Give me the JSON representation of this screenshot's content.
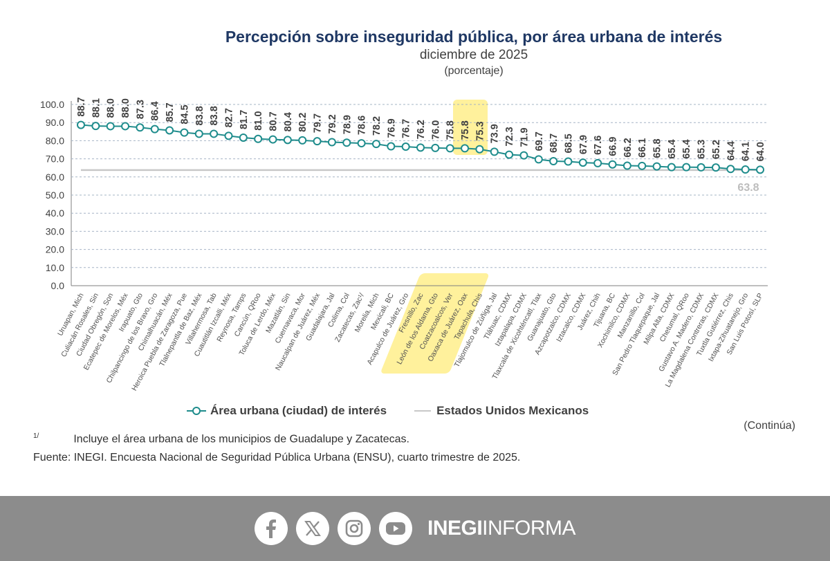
{
  "header": {
    "title": "Percepción sobre inseguridad pública, por área urbana de interés",
    "subtitle": "diciembre de 2025",
    "unit": "(porcentaje)"
  },
  "chart_data": {
    "type": "line",
    "title": "Percepción sobre inseguridad pública, por área urbana de interés",
    "subtitle": "diciembre de 2025",
    "ylabel": "(porcentaje)",
    "ylim": [
      0,
      100
    ],
    "yticks": [
      "100.0",
      "90.0",
      "80.0",
      "70.0",
      "60.0",
      "50.0",
      "40.0",
      "30.0",
      "20.0",
      "10.0",
      "0.0"
    ],
    "grid": true,
    "legend_position": "bottom",
    "categories": [
      "Uruapan, Mich",
      "Culiacán Rosales, Sin",
      "Ciudad Obregón, Son",
      "Ecatepec de Morelos, Méx",
      "Irapuato, Gto",
      "Chilpancingo de los Bravo, Gro",
      "Chimalhuacán, Méx",
      "Heroica Puebla de Zaragoza, Pue",
      "Tlalnepantla de Baz, Méx",
      "Villahermosa, Tab",
      "Cuautitlán Izcalli, Méx",
      "Reynosa, Tamps",
      "Cancún, QRoo",
      "Toluca de Lerdo, Méx",
      "Mazatlán, Sin",
      "Cuernavaca, Mor",
      "Naucalpan de Juárez, Méx",
      "Guadalajara, Jal",
      "Colima, Col",
      "Zacatecas, Zac¹/",
      "Morelia, Mich",
      "Mexicali, BC",
      "Acapulco de Juárez, Gro",
      "Fresnillo, Zac",
      "León de los Aldama, Gto",
      "Coatzacoalcos, Ver",
      "Oaxaca de Juárez, Oax",
      "Tapachula, Chis",
      "Tlajomulco de Zúñiga, Jal",
      "Tláhuac, CDMX",
      "Iztapalapa, CDMX",
      "Tlaxcala de Xicohténcatl, Tlax",
      "Guanajuato, Gto",
      "Azcapotzalco, CDMX",
      "Iztacalco, CDMX",
      "Juárez, Chih",
      "Tijuana, BC",
      "Xochimilco, CDMX",
      "Manzanillo, Col",
      "San Pedro Tlaquepaque, Jal",
      "Milpa Alta, CDMX",
      "Chetumal, QRoo",
      "Gustavo A. Madero, CDMX",
      "La Magdalena Contreras, CDMX",
      "Tuxtla Gutiérrez, Chis",
      "Ixtapa-Zihuatanejo, Gro",
      "San Luis Potosí, SLP"
    ],
    "data_labels": [
      "88.7",
      "88.1",
      "88.0",
      "88.0",
      "87.3",
      "86.4",
      "85.7",
      "84.5",
      "83.8",
      "83.8",
      "82.7",
      "81.7",
      "81.0",
      "80.7",
      "80.4",
      "80.2",
      "79.7",
      "79.2",
      "78.9",
      "78.6",
      "78.2",
      "76.9",
      "76.7",
      "76.2",
      "76.0",
      "75.8",
      "75.8",
      "75.3",
      "73.9",
      "72.3",
      "71.9",
      "69.7",
      "68.7",
      "68.5",
      "67.9",
      "67.6",
      "66.9",
      "66.2",
      "66.1",
      "65.8",
      "65.4",
      "65.4",
      "65.3",
      "65.2",
      "64.4",
      "64.1",
      "64.0"
    ],
    "series": [
      {
        "name": "Área urbana (ciudad) de interés",
        "color": "#1e8c8c",
        "values": [
          88.7,
          88.1,
          88.0,
          88.0,
          87.3,
          86.4,
          85.7,
          84.5,
          83.8,
          83.8,
          82.7,
          81.7,
          81.0,
          80.7,
          80.4,
          80.2,
          79.7,
          79.2,
          78.9,
          78.6,
          78.2,
          76.9,
          76.7,
          76.2,
          76.0,
          75.8,
          75.8,
          75.3,
          73.9,
          72.3,
          71.9,
          69.7,
          68.7,
          68.5,
          67.9,
          67.6,
          66.9,
          66.2,
          66.1,
          65.8,
          65.4,
          65.4,
          65.3,
          65.2,
          64.4,
          64.1,
          64.0
        ]
      },
      {
        "name": "Estados Unidos Mexicanos",
        "color": "#c8c8c8",
        "value": 63.8,
        "label": "63.8"
      }
    ],
    "highlighted_categories": [
      "Coatzacoalcos, Ver",
      "Oaxaca de Juárez, Oax",
      "Tapachula, Chis"
    ],
    "highlight_color": "#ffe54a"
  },
  "notes": {
    "continua": "(Continúa)",
    "note_mark": "1/",
    "note_text": "Incluye el área urbana de los municipios de Guadalupe y Zacatecas.",
    "source": "Fuente: INEGI. Encuesta Nacional de Seguridad Pública Urbana (ENSU), cuarto trimestre de 2025."
  },
  "footer": {
    "icons": [
      "facebook-icon",
      "x-icon",
      "instagram-icon",
      "youtube-icon"
    ],
    "brand_bold": "INEGI",
    "brand_light": "INFORMA",
    "background": "#8c8c8c"
  }
}
